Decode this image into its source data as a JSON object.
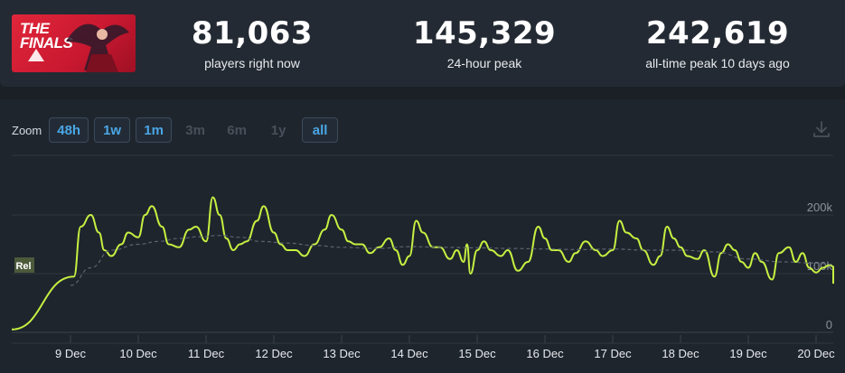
{
  "logo": {
    "line1": "THE",
    "line2": "FINALS"
  },
  "stats": [
    {
      "value": "81,063",
      "label": "players right now"
    },
    {
      "value": "145,329",
      "label": "24-hour peak"
    },
    {
      "value": "242,619",
      "label": "all-time peak 10 days ago"
    }
  ],
  "zoom": {
    "label": "Zoom",
    "buttons": [
      {
        "label": "48h",
        "active": true
      },
      {
        "label": "1w",
        "active": true
      },
      {
        "label": "1m",
        "active": true
      },
      {
        "label": "3m",
        "active": false
      },
      {
        "label": "6m",
        "active": false
      },
      {
        "label": "1y",
        "active": false
      },
      {
        "label": "all",
        "active": true
      }
    ]
  },
  "chart_data": {
    "type": "line",
    "y_ticks": [
      "0",
      "100k",
      "200k"
    ],
    "ylim": [
      0,
      260000
    ],
    "categories": [
      "9 Dec",
      "10 Dec",
      "11 Dec",
      "12 Dec",
      "13 Dec",
      "14 Dec",
      "15 Dec",
      "16 Dec",
      "17 Dec",
      "18 Dec",
      "19 Dec",
      "20 Dec"
    ],
    "release_flag": "Rel",
    "series": [
      {
        "style": "solid",
        "color": "#c5f041",
        "x": [
          0,
          0.05,
          0.15,
          0.3,
          0.42,
          0.5,
          0.6,
          0.75,
          0.85,
          1.0,
          1.1,
          1.2,
          1.35,
          1.45,
          1.6,
          1.75,
          1.85,
          2.0,
          2.1,
          2.2,
          2.3,
          2.4,
          2.5,
          2.6,
          2.75,
          2.85,
          3.0,
          3.1,
          3.2,
          3.32,
          3.45,
          3.6,
          3.75,
          3.85,
          4.0,
          4.1,
          4.2,
          4.3,
          4.42,
          4.55,
          4.7,
          4.8,
          4.9,
          5.0,
          5.1,
          5.2,
          5.35,
          5.45,
          5.6,
          5.7,
          5.8,
          5.85,
          5.9,
          6.0,
          6.1,
          6.2,
          6.35,
          6.45,
          6.6,
          6.75,
          6.9,
          7.0,
          7.1,
          7.2,
          7.35,
          7.45,
          7.6,
          7.75,
          7.85,
          8.0,
          8.1,
          8.2,
          8.35,
          8.45,
          8.6,
          8.7,
          8.8,
          8.9,
          9.0,
          9.1,
          9.25,
          9.35,
          9.5,
          9.6,
          9.7,
          9.8,
          9.9,
          10.0,
          10.1,
          10.2,
          10.35,
          10.45,
          10.6,
          10.7,
          10.8,
          10.9,
          11.0,
          11.1,
          11.2,
          11.3,
          11.4
        ],
        "values": [
          5000,
          95000,
          180000,
          200000,
          170000,
          140000,
          130000,
          150000,
          170000,
          162000,
          200000,
          215000,
          180000,
          150000,
          145000,
          175000,
          180000,
          155000,
          230000,
          200000,
          160000,
          140000,
          150000,
          155000,
          190000,
          215000,
          170000,
          150000,
          140000,
          140000,
          130000,
          150000,
          175000,
          200000,
          175000,
          155000,
          150000,
          150000,
          135000,
          145000,
          160000,
          140000,
          115000,
          130000,
          190000,
          170000,
          145000,
          145000,
          125000,
          140000,
          120000,
          150000,
          100000,
          140000,
          155000,
          140000,
          130000,
          140000,
          105000,
          120000,
          180000,
          160000,
          140000,
          140000,
          120000,
          135000,
          155000,
          140000,
          130000,
          140000,
          190000,
          170000,
          160000,
          140000,
          115000,
          130000,
          180000,
          160000,
          145000,
          130000,
          125000,
          140000,
          95000,
          135000,
          150000,
          140000,
          120000,
          110000,
          135000,
          120000,
          90000,
          135000,
          145000,
          120000,
          135000,
          110000,
          102000,
          110000,
          115000,
          112000,
          83000
        ]
      },
      {
        "style": "dashed",
        "color": "#5d6470",
        "x": [
          0,
          0.3,
          0.6,
          1.0,
          1.3,
          1.6,
          1.9,
          2.2,
          2.5,
          2.8,
          3.2,
          3.6,
          4.0,
          4.5,
          5.0,
          5.5,
          6.0,
          6.5,
          7.0,
          7.5,
          8.0,
          8.5,
          9.0,
          9.5,
          10.0,
          10.5,
          11.0,
          11.4
        ],
        "values": [
          80000,
          110000,
          140000,
          150000,
          155000,
          160000,
          163000,
          165000,
          162000,
          155000,
          152000,
          148000,
          145000,
          143000,
          146000,
          145000,
          144000,
          143000,
          142000,
          141000,
          142000,
          140000,
          140000,
          137000,
          125000,
          120000,
          118000,
          116000
        ]
      }
    ]
  }
}
